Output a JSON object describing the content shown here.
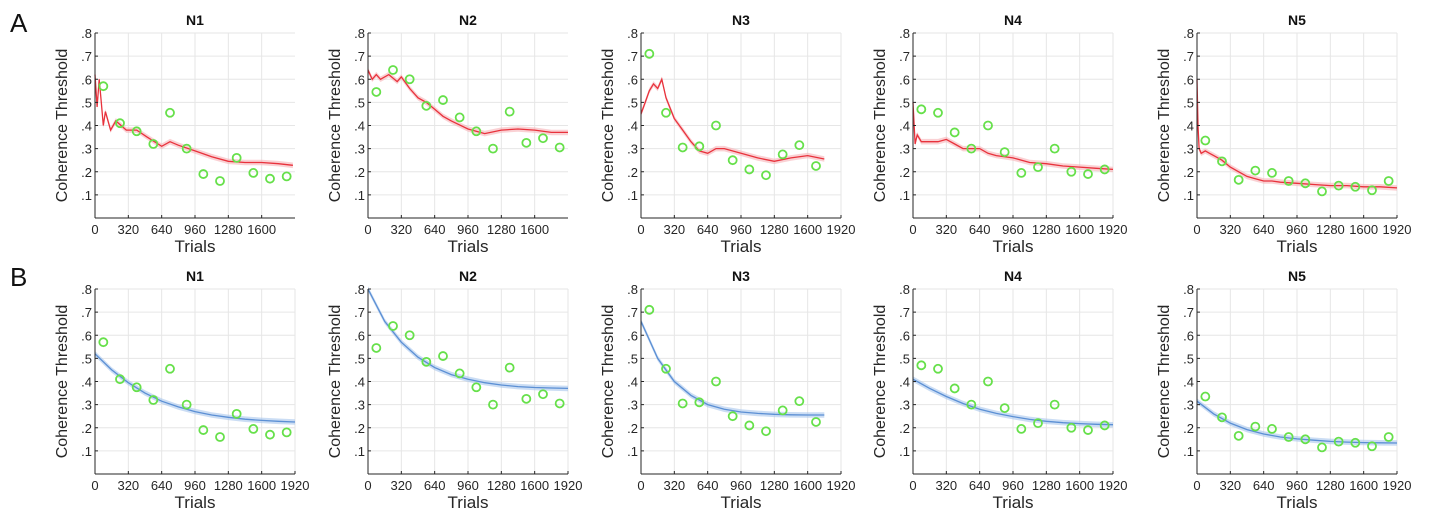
{
  "figure": {
    "row_labels": [
      "A",
      "B"
    ]
  },
  "colors": {
    "row_a_fit": "#e8323c",
    "row_a_band": "#f7b3b8",
    "row_b_fit": "#5b8fd4",
    "row_b_band": "#a9c7ec",
    "points_edge": "#66e04a",
    "axis": "#262626",
    "grid": "#e6e6e6"
  },
  "chart_data": [
    {
      "row": "A",
      "type": "line",
      "title": "N1",
      "xlabel": "Trials",
      "ylabel": "Coherence Threshold",
      "xlim": [
        0,
        1920
      ],
      "ylim": [
        0,
        0.8
      ],
      "xticks": [
        0,
        320,
        640,
        960,
        1280,
        1600
      ],
      "xtick_labels": [
        "0",
        "320",
        "640",
        "960",
        "1280",
        "1600"
      ],
      "yticks": [
        0.1,
        0.2,
        0.3,
        0.4,
        0.5,
        0.6,
        0.7,
        0.8
      ],
      "ytick_labels": [
        ".1",
        ".2",
        ".3",
        ".4",
        ".5",
        ".6",
        ".7",
        ".8"
      ],
      "grid": true,
      "points": {
        "x": [
          80,
          240,
          400,
          560,
          720,
          880,
          1040,
          1200,
          1360,
          1520,
          1680,
          1840
        ],
        "y": [
          0.57,
          0.41,
          0.375,
          0.32,
          0.455,
          0.3,
          0.19,
          0.16,
          0.26,
          0.195,
          0.17,
          0.18
        ]
      },
      "fit": {
        "x": [
          0,
          20,
          40,
          60,
          80,
          100,
          150,
          200,
          300,
          400,
          500,
          640,
          720,
          800,
          960,
          1120,
          1280,
          1440,
          1600,
          1760,
          1900
        ],
        "y": [
          0.62,
          0.48,
          0.6,
          0.5,
          0.4,
          0.46,
          0.38,
          0.42,
          0.38,
          0.38,
          0.35,
          0.31,
          0.33,
          0.315,
          0.29,
          0.265,
          0.245,
          0.24,
          0.24,
          0.235,
          0.228
        ]
      }
    },
    {
      "row": "A",
      "type": "line",
      "title": "N2",
      "xlabel": "Trials",
      "ylabel": "Coherence Threshold",
      "xlim": [
        0,
        1920
      ],
      "ylim": [
        0,
        0.8
      ],
      "xticks": [
        0,
        320,
        640,
        960,
        1280,
        1600
      ],
      "xtick_labels": [
        "0",
        "320",
        "640",
        "960",
        "1280",
        "1600"
      ],
      "yticks": [
        0.1,
        0.2,
        0.3,
        0.4,
        0.5,
        0.6,
        0.7,
        0.8
      ],
      "ytick_labels": [
        ".1",
        ".2",
        ".3",
        ".4",
        ".5",
        ".6",
        ".7",
        ".8"
      ],
      "grid": true,
      "points": {
        "x": [
          80,
          240,
          400,
          560,
          720,
          880,
          1040,
          1200,
          1360,
          1520,
          1680,
          1840
        ],
        "y": [
          0.545,
          0.64,
          0.6,
          0.485,
          0.51,
          0.435,
          0.375,
          0.3,
          0.46,
          0.325,
          0.345,
          0.305
        ]
      },
      "fit": {
        "x": [
          0,
          40,
          80,
          120,
          200,
          280,
          320,
          400,
          480,
          560,
          640,
          720,
          800,
          960,
          1120,
          1280,
          1440,
          1600,
          1760,
          1920
        ],
        "y": [
          0.64,
          0.6,
          0.62,
          0.6,
          0.62,
          0.59,
          0.61,
          0.56,
          0.52,
          0.5,
          0.47,
          0.44,
          0.42,
          0.385,
          0.365,
          0.38,
          0.385,
          0.38,
          0.37,
          0.37
        ]
      }
    },
    {
      "row": "A",
      "type": "line",
      "title": "N3",
      "xlabel": "Trials",
      "ylabel": "Coherence Threshold",
      "xlim": [
        0,
        1920
      ],
      "ylim": [
        0,
        0.8
      ],
      "xticks": [
        0,
        320,
        640,
        960,
        1280,
        1600,
        1920
      ],
      "xtick_labels": [
        "0",
        "320",
        "640",
        "960",
        "1280",
        "1600",
        "1920"
      ],
      "yticks": [
        0.1,
        0.2,
        0.3,
        0.4,
        0.5,
        0.6,
        0.7,
        0.8
      ],
      "ytick_labels": [
        ".1",
        ".2",
        ".3",
        ".4",
        ".5",
        ".6",
        ".7",
        ".8"
      ],
      "grid": true,
      "points": {
        "x": [
          80,
          240,
          400,
          560,
          720,
          880,
          1040,
          1200,
          1360,
          1520,
          1680
        ],
        "y": [
          0.71,
          0.455,
          0.305,
          0.31,
          0.4,
          0.25,
          0.21,
          0.185,
          0.275,
          0.315,
          0.225
        ]
      },
      "fit": {
        "x": [
          0,
          40,
          80,
          120,
          160,
          200,
          240,
          320,
          400,
          480,
          560,
          640,
          720,
          800,
          960,
          1120,
          1280,
          1440,
          1600,
          1760
        ],
        "y": [
          0.45,
          0.5,
          0.55,
          0.58,
          0.56,
          0.6,
          0.52,
          0.43,
          0.38,
          0.33,
          0.29,
          0.28,
          0.3,
          0.3,
          0.28,
          0.26,
          0.245,
          0.26,
          0.27,
          0.255
        ]
      }
    },
    {
      "row": "A",
      "type": "line",
      "title": "N4",
      "xlabel": "Trials",
      "ylabel": "Coherence Threshold",
      "xlim": [
        0,
        1920
      ],
      "ylim": [
        0,
        0.8
      ],
      "xticks": [
        0,
        320,
        640,
        960,
        1280,
        1600,
        1920
      ],
      "xtick_labels": [
        "0",
        "320",
        "640",
        "960",
        "1280",
        "1600",
        "1920"
      ],
      "yticks": [
        0.1,
        0.2,
        0.3,
        0.4,
        0.5,
        0.6,
        0.7,
        0.8
      ],
      "ytick_labels": [
        ".1",
        ".2",
        ".3",
        ".4",
        ".5",
        ".6",
        ".7",
        ".8"
      ],
      "grid": true,
      "points": {
        "x": [
          80,
          240,
          400,
          560,
          720,
          880,
          1040,
          1200,
          1360,
          1520,
          1680,
          1840
        ],
        "y": [
          0.47,
          0.455,
          0.37,
          0.3,
          0.4,
          0.285,
          0.195,
          0.22,
          0.3,
          0.2,
          0.19,
          0.21
        ]
      },
      "fit": {
        "x": [
          0,
          20,
          40,
          80,
          160,
          240,
          320,
          400,
          480,
          560,
          640,
          720,
          800,
          960,
          1120,
          1280,
          1440,
          1600,
          1760,
          1920
        ],
        "y": [
          0.5,
          0.32,
          0.36,
          0.33,
          0.33,
          0.33,
          0.34,
          0.32,
          0.3,
          0.3,
          0.3,
          0.28,
          0.27,
          0.26,
          0.24,
          0.235,
          0.225,
          0.22,
          0.215,
          0.21
        ]
      }
    },
    {
      "row": "A",
      "type": "line",
      "title": "N5",
      "xlabel": "Trials",
      "ylabel": "Coherence Threshold",
      "xlim": [
        0,
        1920
      ],
      "ylim": [
        0,
        0.8
      ],
      "xticks": [
        0,
        320,
        640,
        960,
        1280,
        1600,
        1920
      ],
      "xtick_labels": [
        "0",
        "320",
        "640",
        "960",
        "1280",
        "1600",
        "1920"
      ],
      "yticks": [
        0.1,
        0.2,
        0.3,
        0.4,
        0.5,
        0.6,
        0.7,
        0.8
      ],
      "ytick_labels": [
        ".1",
        ".2",
        ".3",
        ".4",
        ".5",
        ".6",
        ".7",
        ".8"
      ],
      "grid": true,
      "points": {
        "x": [
          80,
          240,
          400,
          560,
          720,
          880,
          1040,
          1200,
          1360,
          1520,
          1680,
          1840
        ],
        "y": [
          0.335,
          0.245,
          0.165,
          0.205,
          0.195,
          0.16,
          0.15,
          0.115,
          0.14,
          0.135,
          0.12,
          0.16
        ]
      },
      "fit": {
        "x": [
          0,
          10,
          20,
          40,
          80,
          120,
          160,
          240,
          320,
          400,
          480,
          560,
          640,
          720,
          800,
          960,
          1120,
          1280,
          1440,
          1600,
          1760,
          1920
        ],
        "y": [
          0.6,
          0.4,
          0.3,
          0.28,
          0.29,
          0.28,
          0.27,
          0.25,
          0.22,
          0.2,
          0.18,
          0.17,
          0.16,
          0.16,
          0.155,
          0.15,
          0.145,
          0.14,
          0.14,
          0.135,
          0.135,
          0.13
        ]
      }
    },
    {
      "row": "B",
      "type": "line",
      "title": "N1",
      "xlabel": "Trials",
      "ylabel": "Coherence Threshold",
      "xlim": [
        0,
        1920
      ],
      "ylim": [
        0,
        0.8
      ],
      "xticks": [
        0,
        320,
        640,
        960,
        1280,
        1600,
        1920
      ],
      "xtick_labels": [
        "0",
        "320",
        "640",
        "960",
        "1280",
        "1600",
        "1920"
      ],
      "yticks": [
        0.1,
        0.2,
        0.3,
        0.4,
        0.5,
        0.6,
        0.7,
        0.8
      ],
      "ytick_labels": [
        ".1",
        ".2",
        ".3",
        ".4",
        ".5",
        ".6",
        ".7",
        ".8"
      ],
      "grid": true,
      "points": {
        "x": [
          80,
          240,
          400,
          560,
          720,
          880,
          1040,
          1200,
          1360,
          1520,
          1680,
          1840
        ],
        "y": [
          0.57,
          0.41,
          0.375,
          0.32,
          0.455,
          0.3,
          0.19,
          0.16,
          0.26,
          0.195,
          0.17,
          0.18
        ]
      },
      "fit": {
        "x": [
          0,
          160,
          320,
          480,
          640,
          800,
          960,
          1120,
          1280,
          1440,
          1600,
          1760,
          1920
        ],
        "y": [
          0.52,
          0.45,
          0.395,
          0.35,
          0.315,
          0.29,
          0.27,
          0.255,
          0.245,
          0.237,
          0.232,
          0.228,
          0.225
        ]
      }
    },
    {
      "row": "B",
      "type": "line",
      "title": "N2",
      "xlabel": "Trials",
      "ylabel": "Coherence Threshold",
      "xlim": [
        0,
        1920
      ],
      "ylim": [
        0,
        0.8
      ],
      "xticks": [
        0,
        320,
        640,
        960,
        1280,
        1600,
        1920
      ],
      "xtick_labels": [
        "0",
        "320",
        "640",
        "960",
        "1280",
        "1600",
        "1920"
      ],
      "yticks": [
        0.1,
        0.2,
        0.3,
        0.4,
        0.5,
        0.6,
        0.7,
        0.8
      ],
      "ytick_labels": [
        ".1",
        ".2",
        ".3",
        ".4",
        ".5",
        ".6",
        ".7",
        ".8"
      ],
      "grid": true,
      "points": {
        "x": [
          80,
          240,
          400,
          560,
          720,
          880,
          1040,
          1200,
          1360,
          1520,
          1680,
          1840
        ],
        "y": [
          0.545,
          0.64,
          0.6,
          0.485,
          0.51,
          0.435,
          0.375,
          0.3,
          0.46,
          0.325,
          0.345,
          0.305
        ]
      },
      "fit": {
        "x": [
          0,
          160,
          320,
          480,
          640,
          800,
          960,
          1120,
          1280,
          1440,
          1600,
          1760,
          1920
        ],
        "y": [
          0.8,
          0.66,
          0.57,
          0.505,
          0.46,
          0.43,
          0.41,
          0.395,
          0.385,
          0.378,
          0.374,
          0.372,
          0.37
        ]
      }
    },
    {
      "row": "B",
      "type": "line",
      "title": "N3",
      "xlabel": "Trials",
      "ylabel": "Coherence Threshold",
      "xlim": [
        0,
        1920
      ],
      "ylim": [
        0,
        0.8
      ],
      "xticks": [
        0,
        320,
        640,
        960,
        1280,
        1600,
        1920
      ],
      "xtick_labels": [
        "0",
        "320",
        "640",
        "960",
        "1280",
        "1600",
        "1920"
      ],
      "yticks": [
        0.1,
        0.2,
        0.3,
        0.4,
        0.5,
        0.6,
        0.7,
        0.8
      ],
      "ytick_labels": [
        ".1",
        ".2",
        ".3",
        ".4",
        ".5",
        ".6",
        ".7",
        ".8"
      ],
      "grid": true,
      "points": {
        "x": [
          80,
          240,
          400,
          560,
          720,
          880,
          1040,
          1200,
          1360,
          1520,
          1680
        ],
        "y": [
          0.71,
          0.455,
          0.305,
          0.31,
          0.4,
          0.25,
          0.21,
          0.185,
          0.275,
          0.315,
          0.225
        ]
      },
      "fit": {
        "x": [
          0,
          160,
          320,
          480,
          640,
          800,
          960,
          1120,
          1280,
          1440,
          1600,
          1760
        ],
        "y": [
          0.66,
          0.5,
          0.4,
          0.34,
          0.3,
          0.28,
          0.268,
          0.262,
          0.258,
          0.256,
          0.255,
          0.255
        ]
      }
    },
    {
      "row": "B",
      "type": "line",
      "title": "N4",
      "xlabel": "Trials",
      "ylabel": "Coherence Threshold",
      "xlim": [
        0,
        1920
      ],
      "ylim": [
        0,
        0.8
      ],
      "xticks": [
        0,
        320,
        640,
        960,
        1280,
        1600,
        1920
      ],
      "xtick_labels": [
        "0",
        "320",
        "640",
        "960",
        "1280",
        "1600",
        "1920"
      ],
      "yticks": [
        0.1,
        0.2,
        0.3,
        0.4,
        0.5,
        0.6,
        0.7,
        0.8
      ],
      "ytick_labels": [
        ".1",
        ".2",
        ".3",
        ".4",
        ".5",
        ".6",
        ".7",
        ".8"
      ],
      "grid": true,
      "points": {
        "x": [
          80,
          240,
          400,
          560,
          720,
          880,
          1040,
          1200,
          1360,
          1520,
          1680,
          1840
        ],
        "y": [
          0.47,
          0.455,
          0.37,
          0.3,
          0.4,
          0.285,
          0.195,
          0.22,
          0.3,
          0.2,
          0.19,
          0.21
        ]
      },
      "fit": {
        "x": [
          0,
          160,
          320,
          480,
          640,
          800,
          960,
          1120,
          1280,
          1440,
          1600,
          1760,
          1920
        ],
        "y": [
          0.41,
          0.37,
          0.335,
          0.305,
          0.28,
          0.262,
          0.248,
          0.236,
          0.228,
          0.222,
          0.218,
          0.215,
          0.213
        ]
      }
    },
    {
      "row": "B",
      "type": "line",
      "title": "N5",
      "xlabel": "Trials",
      "ylabel": "Coherence Threshold",
      "xlim": [
        0,
        1920
      ],
      "ylim": [
        0,
        0.8
      ],
      "xticks": [
        0,
        320,
        640,
        960,
        1280,
        1600,
        1920
      ],
      "xtick_labels": [
        "0",
        "320",
        "640",
        "960",
        "1280",
        "1600",
        "1920"
      ],
      "yticks": [
        0.1,
        0.2,
        0.3,
        0.4,
        0.5,
        0.6,
        0.7,
        0.8
      ],
      "ytick_labels": [
        ".1",
        ".2",
        ".3",
        ".4",
        ".5",
        ".6",
        ".7",
        ".8"
      ],
      "grid": true,
      "points": {
        "x": [
          80,
          240,
          400,
          560,
          720,
          880,
          1040,
          1200,
          1360,
          1520,
          1680,
          1840
        ],
        "y": [
          0.335,
          0.245,
          0.165,
          0.205,
          0.195,
          0.16,
          0.15,
          0.115,
          0.14,
          0.135,
          0.12,
          0.16
        ]
      },
      "fit": {
        "x": [
          0,
          160,
          320,
          480,
          640,
          800,
          960,
          1120,
          1280,
          1440,
          1600,
          1760,
          1920
        ],
        "y": [
          0.315,
          0.26,
          0.22,
          0.192,
          0.173,
          0.16,
          0.152,
          0.146,
          0.141,
          0.138,
          0.136,
          0.135,
          0.134
        ]
      }
    }
  ]
}
